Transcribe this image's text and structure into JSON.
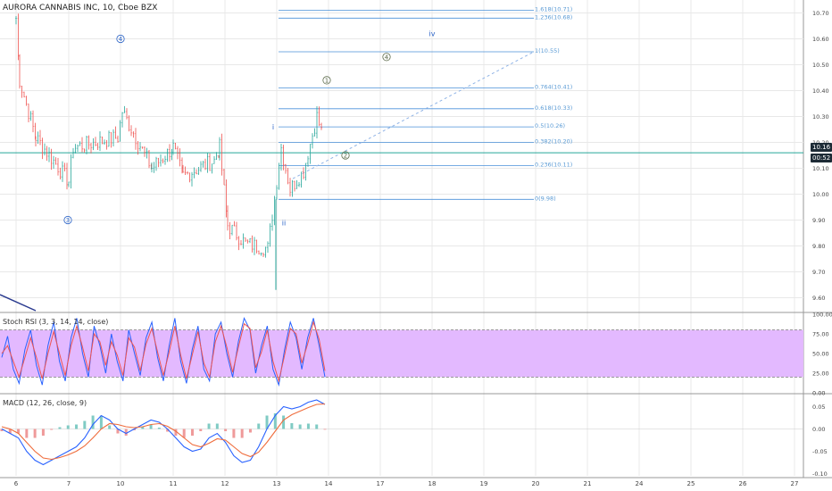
{
  "header": {
    "title": "AURORA CANNABIS INC, 10, Cboe BZX"
  },
  "colors": {
    "up": "#26a69a",
    "down": "#ef5350",
    "fib": "#4a90d9",
    "fib_label": "#5b9bd5",
    "wave": "#2a63c7",
    "wave_circle": "#5b6a4a",
    "stoch_fill": "#e3b9ff",
    "k_line": "#2962ff",
    "d_line": "#ef5350",
    "macd_line": "#2962ff",
    "signal_line": "#ef6c3c",
    "price_line": "#26a69a",
    "grid": "#e8e8e8"
  },
  "chart_data": [
    {
      "type": "candlestick",
      "title": "AURORA CANNABIS INC, 10, Cboe BZX",
      "x_ticks": [
        "6",
        "7",
        "10",
        "11",
        "12",
        "13",
        "14",
        "17",
        "18",
        "19",
        "20",
        "21",
        "24",
        "25",
        "26",
        "27"
      ],
      "y_ticks": [
        "10.70",
        "10.60",
        "10.50",
        "10.40",
        "10.30",
        "10.20",
        "10.10",
        "10.00",
        "9.90",
        "9.80",
        "9.70",
        "9.60"
      ],
      "ylim": [
        9.55,
        10.75
      ],
      "current_price": "10.16",
      "price_tag_2": "00:52",
      "path_keypoints": [
        {
          "x": "6",
          "y": 10.68
        },
        {
          "x": "6",
          "y": 10.44
        },
        {
          "x": "7",
          "y": 10.22
        },
        {
          "x": "7",
          "y": 10.05
        },
        {
          "x": "7",
          "y": 10.18
        },
        {
          "x": "10",
          "y": 10.22
        },
        {
          "x": "10",
          "y": 10.32
        },
        {
          "x": "10",
          "y": 10.1
        },
        {
          "x": "11",
          "y": 10.18
        },
        {
          "x": "11",
          "y": 10.07
        },
        {
          "x": "11",
          "y": 10.13
        },
        {
          "x": "12",
          "y": 10.18
        },
        {
          "x": "12",
          "y": 9.88
        },
        {
          "x": "12",
          "y": 9.81
        },
        {
          "x": "13",
          "y": 9.79
        },
        {
          "x": "13",
          "y": 10.18
        },
        {
          "x": "13",
          "y": 10.02
        },
        {
          "x": "13",
          "y": 10.09
        },
        {
          "x": "14",
          "y": 10.3
        },
        {
          "x": "14",
          "y": 10.22
        }
      ],
      "fib_levels": [
        {
          "ratio": "1.618(10.71)",
          "value": 10.71,
          "label": "1.618(10.71)"
        },
        {
          "ratio": "1.236(10.68)",
          "value": 10.68,
          "label": "1.236(10.68)"
        },
        {
          "ratio": "1",
          "value": 10.55,
          "label": "1(10.55)"
        },
        {
          "ratio": "0.764",
          "value": 10.41,
          "label": "0.764(10.41)"
        },
        {
          "ratio": "0.618",
          "value": 10.33,
          "label": "0.618(10.33)"
        },
        {
          "ratio": "0.5",
          "value": 10.26,
          "label": "0.5(10.26)"
        },
        {
          "ratio": "0.382",
          "value": 10.2,
          "label": "0.382(10.20)"
        },
        {
          "ratio": "0.236",
          "value": 10.11,
          "label": "0.236(10.11)"
        },
        {
          "ratio": "0",
          "value": 9.98,
          "label": "0(9.98)"
        }
      ],
      "wave_labels": [
        {
          "text": "4",
          "circled": true,
          "x": "10",
          "y": 10.6
        },
        {
          "text": "3",
          "circled": true,
          "x": "7",
          "y": 9.9
        },
        {
          "text": "i",
          "circled": false,
          "x": "13",
          "y": 10.26
        },
        {
          "text": "ii",
          "circled": false,
          "x": "13",
          "y": 9.89
        },
        {
          "text": "iv",
          "circled": false,
          "x": "18",
          "y": 10.62
        },
        {
          "text": "1",
          "circled": true,
          "x": "14",
          "y": 10.44
        },
        {
          "text": "2",
          "circled": true,
          "x": "14",
          "y": 10.15
        },
        {
          "text": "4",
          "circled": true,
          "x": "17",
          "y": 10.53
        }
      ]
    },
    {
      "type": "line",
      "title": "Stoch RSI (3, 3, 14, 14, close)",
      "y_ticks": [
        "100.00",
        "75.00",
        "50.00",
        "25.00",
        "0.00"
      ],
      "ylim": [
        0,
        100
      ],
      "band": [
        20,
        80
      ],
      "series": [
        {
          "values": [
            45,
            72,
            30,
            12,
            55,
            80,
            35,
            10,
            60,
            90,
            40,
            15,
            70,
            95,
            50,
            20,
            85,
            60,
            25,
            75,
            40,
            15,
            80,
            50,
            22,
            70,
            90,
            45,
            15,
            60,
            95,
            40,
            12,
            55,
            85,
            30,
            15,
            75,
            90,
            50,
            20,
            65,
            95,
            80,
            25,
            60,
            85,
            30,
            10,
            55,
            90,
            70,
            30,
            70,
            95,
            60,
            20
          ]
        },
        {
          "values": [
            50,
            60,
            40,
            20,
            45,
            70,
            45,
            18,
            50,
            78,
            50,
            22,
            60,
            85,
            58,
            28,
            75,
            65,
            35,
            65,
            48,
            22,
            70,
            58,
            28,
            62,
            82,
            52,
            22,
            52,
            85,
            48,
            18,
            48,
            78,
            38,
            20,
            65,
            85,
            58,
            26,
            58,
            88,
            82,
            32,
            52,
            80,
            40,
            15,
            48,
            82,
            75,
            38,
            62,
            90,
            68,
            28
          ]
        }
      ]
    },
    {
      "type": "bar",
      "title": "MACD (12, 26, close, 9)",
      "y_ticks": [
        "0.05",
        "0.00",
        "-0.05",
        "-0.10"
      ],
      "ylim": [
        -0.105,
        0.075
      ],
      "series": [
        {
          "values": [
            0.0,
            -0.01,
            -0.02,
            -0.05,
            -0.07,
            -0.08,
            -0.07,
            -0.06,
            -0.05,
            -0.04,
            -0.02,
            0.01,
            0.03,
            0.02,
            0.0,
            -0.01,
            0.0,
            0.01,
            0.02,
            0.015,
            0.0,
            -0.02,
            -0.04,
            -0.05,
            -0.045,
            -0.02,
            -0.01,
            -0.03,
            -0.06,
            -0.075,
            -0.07,
            -0.04,
            0.0,
            0.03,
            0.05,
            0.045,
            0.05,
            0.06,
            0.065,
            0.055
          ]
        },
        {
          "values": [
            0.005,
            0.0,
            -0.01,
            -0.03,
            -0.05,
            -0.065,
            -0.068,
            -0.064,
            -0.058,
            -0.05,
            -0.038,
            -0.02,
            0.0,
            0.012,
            0.01,
            0.005,
            0.003,
            0.005,
            0.01,
            0.012,
            0.006,
            -0.005,
            -0.02,
            -0.035,
            -0.04,
            -0.032,
            -0.022,
            -0.025,
            -0.04,
            -0.055,
            -0.062,
            -0.052,
            -0.03,
            -0.005,
            0.02,
            0.032,
            0.04,
            0.048,
            0.055,
            0.056
          ]
        },
        {
          "values": [
            -0.005,
            -0.01,
            -0.01,
            -0.02,
            -0.02,
            -0.015,
            -0.002,
            0.004,
            0.008,
            0.01,
            0.018,
            0.03,
            0.03,
            0.008,
            -0.01,
            -0.015,
            -0.003,
            0.005,
            0.01,
            0.003,
            -0.006,
            -0.015,
            -0.02,
            -0.015,
            -0.005,
            0.012,
            0.012,
            -0.005,
            -0.02,
            -0.02,
            -0.008,
            0.012,
            0.03,
            0.035,
            0.03,
            0.013,
            0.01,
            0.012,
            0.01,
            -0.001
          ]
        }
      ]
    }
  ]
}
